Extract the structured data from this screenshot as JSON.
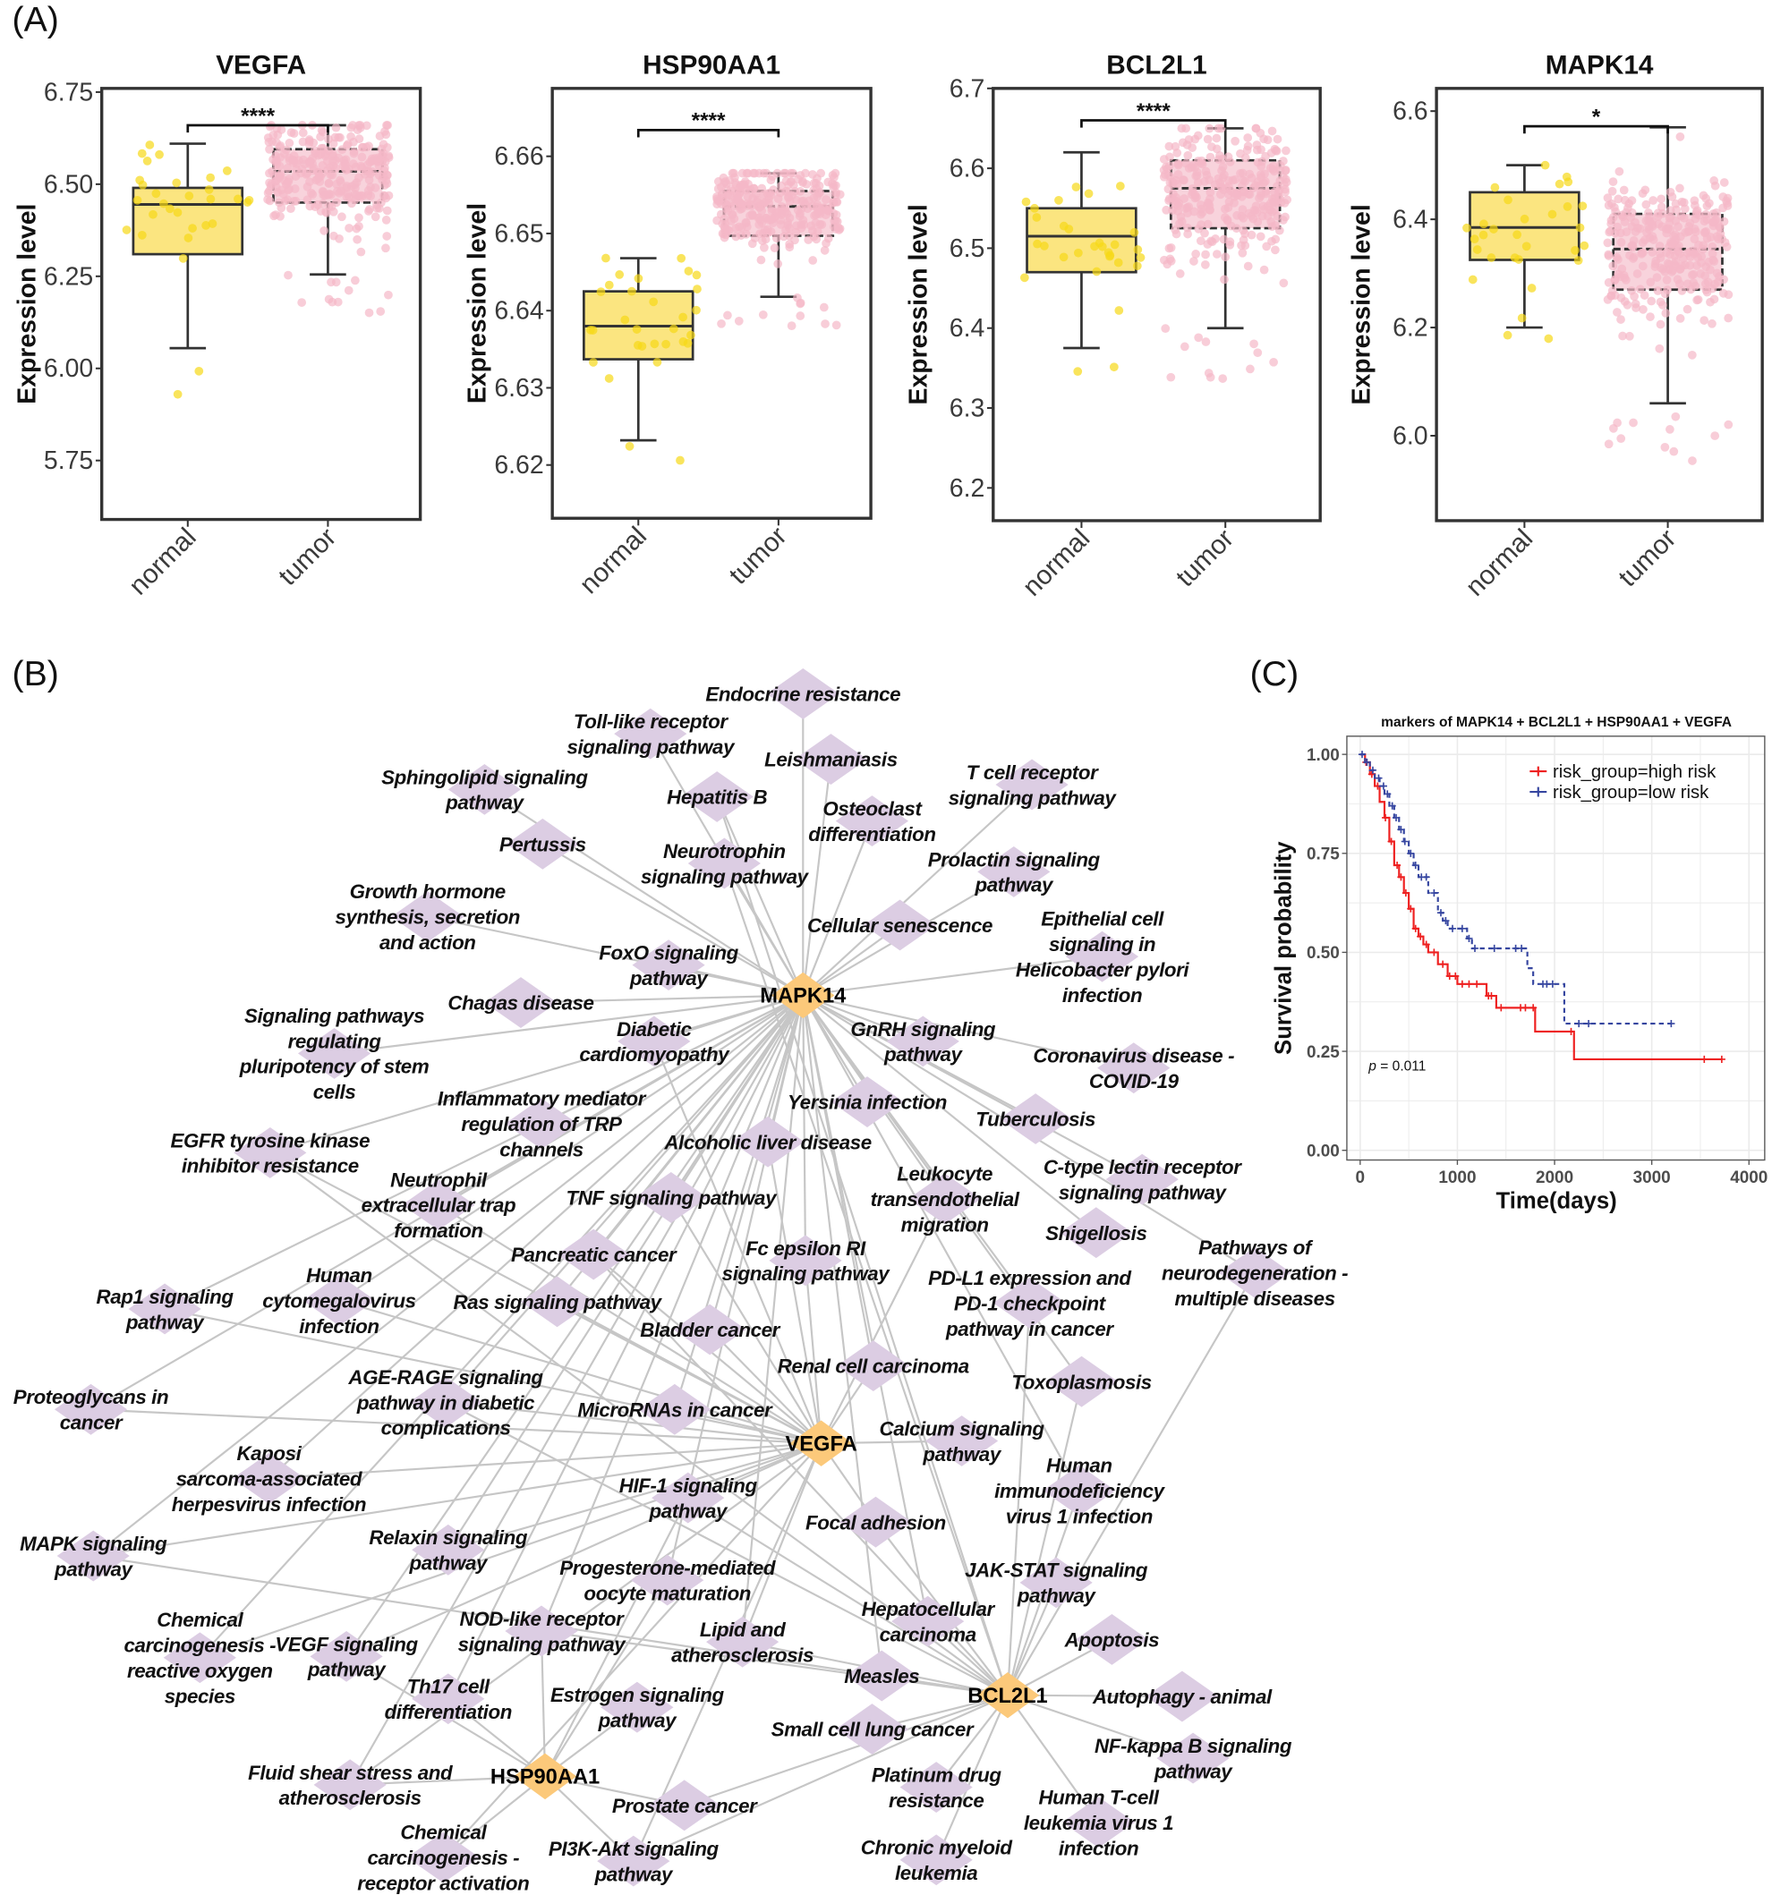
{
  "panel_labels": {
    "a": "(A)",
    "b": "(B)",
    "c": "(C)"
  },
  "colors": {
    "normal": "#f7d917",
    "normal_box": "#fbe580",
    "tumor": "#f5b8c8",
    "tumor_box": "#f8d3dc",
    "high_risk": "#ee2020",
    "low_risk": "#3646a0",
    "pathway_node": "#dccde3",
    "hub_node": "#fcc97a",
    "edge": "#c6c6c6"
  },
  "chart_data": [
    {
      "type": "box",
      "title": "VEGFA",
      "ylabel": "Expression level",
      "ylim": [
        5.59,
        6.76
      ],
      "yticks": [
        "5.75",
        "6.00",
        "6.25",
        "6.50",
        "6.75"
      ],
      "categories": [
        "normal",
        "tumor"
      ],
      "significance": "****",
      "boxes": [
        {
          "group": "normal",
          "low": 6.055,
          "q1": 6.31,
          "median": 6.445,
          "q3": 6.49,
          "high": 6.61,
          "n": 30
        },
        {
          "group": "tumor",
          "low": 6.255,
          "q1": 6.45,
          "median": 6.535,
          "q3": 6.595,
          "high": 6.66,
          "n": 300
        }
      ],
      "bracket_y": 6.66
    },
    {
      "type": "box",
      "title": "HSP90AA1",
      "ylabel": "Expression level",
      "ylim": [
        6.6131,
        6.6688
      ],
      "yticks": [
        "6.62",
        "6.63",
        "6.64",
        "6.65",
        "6.66"
      ],
      "categories": [
        "normal",
        "tumor"
      ],
      "significance": "****",
      "boxes": [
        {
          "group": "normal",
          "low": 6.6232,
          "q1": 6.6337,
          "median": 6.638,
          "q3": 6.6425,
          "high": 6.6468,
          "n": 30
        },
        {
          "group": "tumor",
          "low": 6.6418,
          "q1": 6.6497,
          "median": 6.6535,
          "q3": 6.6555,
          "high": 6.6578,
          "n": 300
        }
      ],
      "bracket_y": 6.6634
    },
    {
      "type": "box",
      "title": "BCL2L1",
      "ylabel": "Expression level",
      "ylim": [
        6.159,
        6.7
      ],
      "yticks": [
        "6.2",
        "6.3",
        "6.4",
        "6.5",
        "6.6",
        "6.7"
      ],
      "categories": [
        "normal",
        "tumor"
      ],
      "significance": "****",
      "boxes": [
        {
          "group": "normal",
          "low": 6.375,
          "q1": 6.47,
          "median": 6.515,
          "q3": 6.55,
          "high": 6.62,
          "n": 30
        },
        {
          "group": "tumor",
          "low": 6.4,
          "q1": 6.525,
          "median": 6.575,
          "q3": 6.61,
          "high": 6.65,
          "n": 300
        }
      ],
      "bracket_y": 6.66
    },
    {
      "type": "box",
      "title": "MAPK14",
      "ylabel": "Expression level",
      "ylim": [
        5.843,
        6.642
      ],
      "yticks": [
        "6.0",
        "6.2",
        "6.4",
        "6.6"
      ],
      "categories": [
        "normal",
        "tumor"
      ],
      "significance": "*",
      "boxes": [
        {
          "group": "normal",
          "low": 6.2,
          "q1": 6.325,
          "median": 6.385,
          "q3": 6.45,
          "high": 6.5,
          "n": 30
        },
        {
          "group": "tumor",
          "low": 6.06,
          "q1": 6.27,
          "median": 6.345,
          "q3": 6.41,
          "high": 6.57,
          "n": 300
        }
      ],
      "bracket_y": 6.572
    },
    {
      "type": "line",
      "subtype": "kaplan-meier",
      "title": "markers of MAPK14 + BCL2L1 + HSP90AA1 + VEGFA",
      "xlabel": "Time(days)",
      "ylabel": "Survival probability",
      "xlim": [
        0,
        4000
      ],
      "ylim": [
        0,
        1
      ],
      "xticks": [
        "0",
        "1000",
        "2000",
        "3000",
        "4000"
      ],
      "yticks": [
        "0.00",
        "0.25",
        "0.50",
        "0.75",
        "1.00"
      ],
      "grid": true,
      "legend_position": "top-right",
      "p_label": "p",
      "p_value": "= 0.011",
      "series": [
        {
          "name": "risk_group=high risk",
          "style": "solid",
          "t": [
            0,
            50,
            100,
            150,
            200,
            250,
            300,
            350,
            400,
            450,
            500,
            550,
            600,
            650,
            700,
            800,
            900,
            1000,
            1300,
            1400,
            1800,
            2200,
            3720
          ],
          "s": [
            1.0,
            0.98,
            0.95,
            0.92,
            0.88,
            0.84,
            0.78,
            0.72,
            0.69,
            0.65,
            0.61,
            0.56,
            0.54,
            0.52,
            0.5,
            0.47,
            0.44,
            0.42,
            0.39,
            0.36,
            0.3,
            0.23,
            0.23
          ],
          "censor": [
            60,
            120,
            180,
            260,
            320,
            380,
            420,
            470,
            520,
            570,
            620,
            680,
            760,
            850,
            920,
            980,
            1050,
            1120,
            1200,
            1320,
            1350,
            1450,
            1650,
            1700,
            1780,
            2170,
            3540,
            3720
          ]
        },
        {
          "name": "risk_group=low risk",
          "style": "dashed",
          "t": [
            0,
            50,
            100,
            150,
            200,
            250,
            300,
            350,
            400,
            450,
            500,
            550,
            600,
            700,
            800,
            850,
            900,
            1100,
            1150,
            1680,
            1720,
            1780,
            2100,
            3200
          ],
          "s": [
            1.0,
            0.98,
            0.96,
            0.94,
            0.92,
            0.9,
            0.87,
            0.84,
            0.81,
            0.78,
            0.75,
            0.72,
            0.69,
            0.65,
            0.6,
            0.58,
            0.56,
            0.535,
            0.51,
            0.51,
            0.46,
            0.42,
            0.32,
            0.32
          ],
          "censor": [
            20,
            70,
            130,
            190,
            240,
            280,
            330,
            370,
            420,
            460,
            520,
            570,
            630,
            680,
            760,
            830,
            880,
            950,
            1050,
            1120,
            1180,
            1380,
            1600,
            1660,
            1880,
            1920,
            1980,
            2250,
            2350,
            3200
          ]
        }
      ]
    }
  ],
  "network": {
    "hubs": [
      "MAPK14",
      "VEGFA",
      "BCL2L1",
      "HSP90AA1"
    ],
    "pathways": [
      {
        "label": "Endocrine resistance",
        "genes": [
          "MAPK14"
        ]
      },
      {
        "label": "Toll-like receptor\nsignaling pathway",
        "genes": [
          "MAPK14"
        ]
      },
      {
        "label": "Leishmaniasis",
        "genes": [
          "MAPK14"
        ]
      },
      {
        "label": "Sphingolipid signaling\npathway",
        "genes": [
          "MAPK14"
        ]
      },
      {
        "label": "Hepatitis B",
        "genes": [
          "MAPK14",
          "BCL2L1"
        ]
      },
      {
        "label": "T cell receptor\nsignaling pathway",
        "genes": [
          "MAPK14"
        ]
      },
      {
        "label": "Osteoclast\ndifferentiation",
        "genes": [
          "MAPK14"
        ]
      },
      {
        "label": "Pertussis",
        "genes": [
          "MAPK14"
        ]
      },
      {
        "label": "Neurotrophin\nsignaling pathway",
        "genes": [
          "MAPK14",
          "BCL2L1"
        ]
      },
      {
        "label": "Prolactin signaling\npathway",
        "genes": [
          "MAPK14"
        ]
      },
      {
        "label": "Growth hormone\nsynthesis, secretion\nand action",
        "genes": [
          "MAPK14"
        ]
      },
      {
        "label": "Cellular senescence",
        "genes": [
          "MAPK14"
        ]
      },
      {
        "label": "Epithelial cell\nsignaling in\nHelicobacter pylori\ninfection",
        "genes": [
          "MAPK14"
        ]
      },
      {
        "label": "FoxO signaling\npathway",
        "genes": [
          "MAPK14"
        ]
      },
      {
        "label": "Chagas disease",
        "genes": [
          "MAPK14"
        ]
      },
      {
        "label": "Signaling pathways\nregulating\npluripotency of stem\ncells",
        "genes": [
          "MAPK14"
        ]
      },
      {
        "label": "Diabetic\ncardiomyopathy",
        "genes": [
          "MAPK14",
          "VEGFA"
        ]
      },
      {
        "label": "GnRH signaling\npathway",
        "genes": [
          "MAPK14"
        ]
      },
      {
        "label": "Coronavirus disease -\nCOVID-19",
        "genes": [
          "MAPK14"
        ]
      },
      {
        "label": "Inflammatory mediator\nregulation of TRP\nchannels",
        "genes": [
          "MAPK14"
        ]
      },
      {
        "label": "Yersinia infection",
        "genes": [
          "MAPK14"
        ]
      },
      {
        "label": "Tuberculosis",
        "genes": [
          "MAPK14"
        ]
      },
      {
        "label": "EGFR tyrosine kinase\ninhibitor resistance",
        "genes": [
          "MAPK14",
          "VEGFA",
          "BCL2L1"
        ]
      },
      {
        "label": "Alcoholic liver disease",
        "genes": [
          "MAPK14",
          "VEGFA"
        ]
      },
      {
        "label": "Leukocyte\ntransendothelial\nmigration",
        "genes": [
          "MAPK14",
          "VEGFA"
        ]
      },
      {
        "label": "C-type lectin receptor\nsignaling pathway",
        "genes": [
          "MAPK14"
        ]
      },
      {
        "label": "Neutrophil\nextracellular trap\nformation",
        "genes": [
          "MAPK14",
          "VEGFA"
        ]
      },
      {
        "label": "TNF signaling pathway",
        "genes": [
          "MAPK14",
          "VEGFA"
        ]
      },
      {
        "label": "Shigellosis",
        "genes": [
          "MAPK14"
        ]
      },
      {
        "label": "Pancreatic cancer",
        "genes": [
          "MAPK14",
          "VEGFA",
          "BCL2L1"
        ]
      },
      {
        "label": "Fc epsilon RI\nsignaling pathway",
        "genes": [
          "MAPK14",
          "VEGFA"
        ]
      },
      {
        "label": "Pathways of\nneurodegeneration -\nmultiple diseases",
        "genes": [
          "MAPK14",
          "BCL2L1"
        ]
      },
      {
        "label": "PD-L1 expression and\nPD-1 checkpoint\npathway in cancer",
        "genes": [
          "MAPK14",
          "BCL2L1"
        ]
      },
      {
        "label": "Rap1 signaling\npathway",
        "genes": [
          "MAPK14",
          "VEGFA"
        ]
      },
      {
        "label": "Human\ncytomegalovirus\ninfection",
        "genes": [
          "MAPK14",
          "VEGFA"
        ]
      },
      {
        "label": "Ras signaling pathway",
        "genes": [
          "MAPK14",
          "VEGFA"
        ]
      },
      {
        "label": "Bladder cancer",
        "genes": [
          "MAPK14",
          "VEGFA"
        ]
      },
      {
        "label": "Renal cell carcinoma",
        "genes": [
          "MAPK14",
          "VEGFA"
        ]
      },
      {
        "label": "Toxoplasmosis",
        "genes": [
          "MAPK14",
          "BCL2L1"
        ]
      },
      {
        "label": "Proteoglycans in\ncancer",
        "genes": [
          "MAPK14",
          "VEGFA"
        ]
      },
      {
        "label": "AGE-RAGE signaling\npathway in diabetic\ncomplications",
        "genes": [
          "MAPK14",
          "VEGFA",
          "BCL2L1"
        ]
      },
      {
        "label": "MicroRNAs in cancer",
        "genes": [
          "MAPK14",
          "VEGFA"
        ]
      },
      {
        "label": "Calcium signaling\npathway",
        "genes": [
          "VEGFA"
        ]
      },
      {
        "label": "Kaposi\nsarcoma-associated\nherpesvirus infection",
        "genes": [
          "MAPK14",
          "VEGFA"
        ]
      },
      {
        "label": "HIF-1 signaling\npathway",
        "genes": [
          "VEGFA",
          "BCL2L1",
          "HSP90AA1"
        ]
      },
      {
        "label": "Human\nimmunodeficiency\nvirus 1 infection",
        "genes": [
          "MAPK14",
          "BCL2L1"
        ]
      },
      {
        "label": "Focal adhesion",
        "genes": [
          "VEGFA",
          "BCL2L1"
        ]
      },
      {
        "label": "MAPK signaling\npathway",
        "genes": [
          "MAPK14",
          "VEGFA",
          "BCL2L1"
        ]
      },
      {
        "label": "Relaxin signaling\npathway",
        "genes": [
          "MAPK14",
          "VEGFA"
        ]
      },
      {
        "label": "Progesterone-mediated\noocyte maturation",
        "genes": [
          "MAPK14",
          "HSP90AA1"
        ]
      },
      {
        "label": "JAK-STAT signaling\npathway",
        "genes": [
          "BCL2L1"
        ]
      },
      {
        "label": "Chemical\ncarcinogenesis -\nreactive oxygen\nspecies",
        "genes": [
          "MAPK14",
          "VEGFA"
        ]
      },
      {
        "label": "VEGF signaling\npathway",
        "genes": [
          "MAPK14",
          "VEGFA",
          "HSP90AA1"
        ]
      },
      {
        "label": "NOD-like receptor\nsignaling pathway",
        "genes": [
          "MAPK14",
          "BCL2L1",
          "HSP90AA1"
        ]
      },
      {
        "label": "Lipid and\natherosclerosis",
        "genes": [
          "MAPK14",
          "VEGFA",
          "BCL2L1"
        ]
      },
      {
        "label": "Hepatocellular\ncarcinoma",
        "genes": [
          "MAPK14",
          "BCL2L1"
        ]
      },
      {
        "label": "Apoptosis",
        "genes": [
          "BCL2L1"
        ]
      },
      {
        "label": "Measles",
        "genes": [
          "MAPK14",
          "BCL2L1"
        ]
      },
      {
        "label": "Th17 cell\ndifferentiation",
        "genes": [
          "MAPK14",
          "HSP90AA1"
        ]
      },
      {
        "label": "Estrogen signaling\npathway",
        "genes": [
          "HSP90AA1"
        ]
      },
      {
        "label": "Autophagy - animal",
        "genes": [
          "BCL2L1"
        ]
      },
      {
        "label": "Small cell lung cancer",
        "genes": [
          "BCL2L1"
        ]
      },
      {
        "label": "NF-kappa B signaling\npathway",
        "genes": [
          "BCL2L1"
        ]
      },
      {
        "label": "Fluid shear stress and\natherosclerosis",
        "genes": [
          "MAPK14",
          "VEGFA",
          "HSP90AA1"
        ]
      },
      {
        "label": "Platinum drug\nresistance",
        "genes": [
          "BCL2L1"
        ]
      },
      {
        "label": "Human T-cell\nleukemia virus 1\ninfection",
        "genes": [
          "BCL2L1"
        ]
      },
      {
        "label": "Prostate cancer",
        "genes": [
          "HSP90AA1",
          "BCL2L1"
        ]
      },
      {
        "label": "Chemical\ncarcinogenesis -\nreceptor activation",
        "genes": [
          "VEGFA",
          "HSP90AA1"
        ]
      },
      {
        "label": "PI3K-Akt signaling\npathway",
        "genes": [
          "VEGFA",
          "BCL2L1",
          "HSP90AA1"
        ]
      },
      {
        "label": "Chronic myeloid\nleukemia",
        "genes": [
          "BCL2L1"
        ]
      }
    ]
  }
}
